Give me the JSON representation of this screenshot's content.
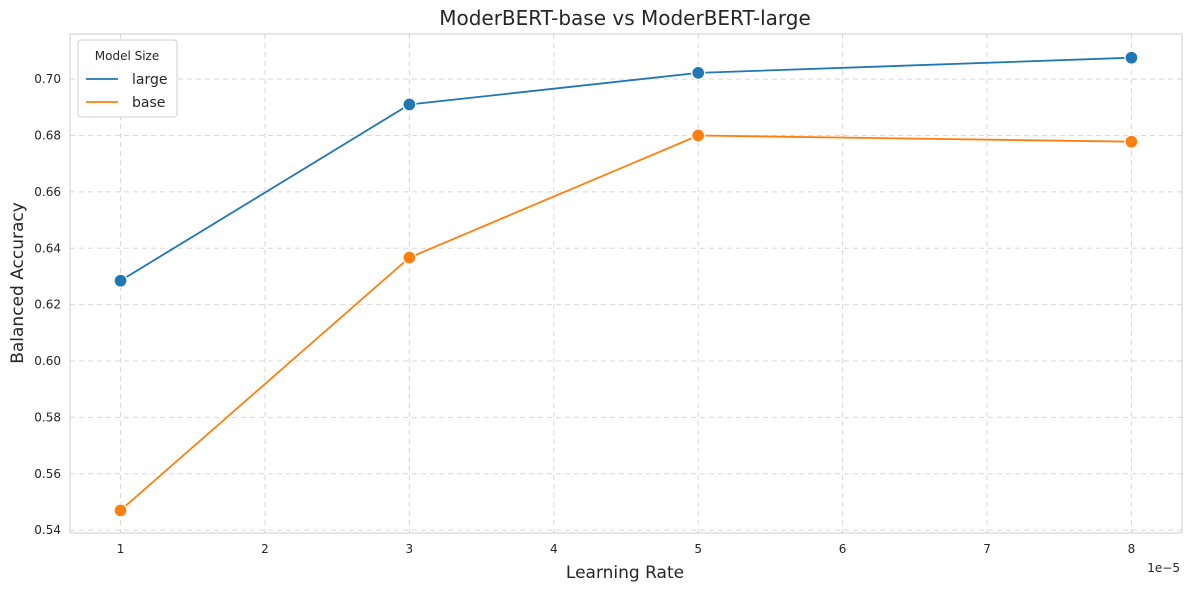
{
  "chart_data": {
    "type": "line",
    "title": "ModerBERT-base vs ModerBERT-large",
    "xlabel": "Learning Rate",
    "ylabel": "Balanced Accuracy",
    "x_multiplier_label": "1e−5",
    "xlim": [
      0.65,
      8.35
    ],
    "ylim": [
      0.539,
      0.716
    ],
    "x_ticks": [
      1,
      2,
      3,
      4,
      5,
      6,
      7,
      8
    ],
    "x_tick_labels": [
      "1",
      "2",
      "3",
      "4",
      "5",
      "6",
      "7",
      "8"
    ],
    "y_ticks": [
      0.54,
      0.56,
      0.58,
      0.6,
      0.62,
      0.64,
      0.66,
      0.68,
      0.7
    ],
    "y_tick_labels": [
      "0.54",
      "0.56",
      "0.58",
      "0.60",
      "0.62",
      "0.64",
      "0.66",
      "0.68",
      "0.70"
    ],
    "grid": true,
    "legend": {
      "title": "Model Size",
      "position": "top-left"
    },
    "series": [
      {
        "name": "large",
        "color": "#1f77b4",
        "x": [
          1,
          3,
          5,
          8
        ],
        "y": [
          0.6285,
          0.691,
          0.7022,
          0.7076
        ]
      },
      {
        "name": "base",
        "color": "#ff7f0e",
        "x": [
          1,
          3,
          5,
          8
        ],
        "y": [
          0.547,
          0.6367,
          0.68,
          0.6778
        ]
      }
    ]
  }
}
